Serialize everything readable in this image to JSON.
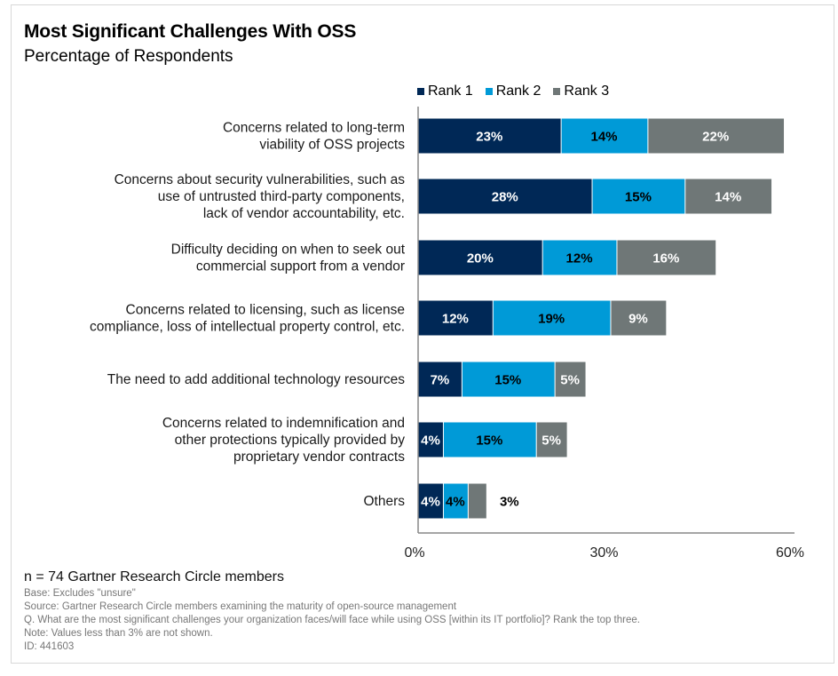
{
  "colors": {
    "rank1": "#002856",
    "rank2": "#009ad7",
    "rank3": "#6f7777",
    "axis": "#888888"
  },
  "chart_data": {
    "type": "bar",
    "orientation": "horizontal",
    "stacked": true,
    "title": "Most Significant Challenges With OSS",
    "subtitle": "Percentage of Respondents",
    "xlabel": "",
    "ylabel": "",
    "xlim": [
      0,
      60
    ],
    "xticks": [
      "0%",
      "30%",
      "60%"
    ],
    "xtick_values": [
      0,
      30,
      60
    ],
    "grid": false,
    "legend_position": "top",
    "categories": [
      [
        "Concerns related to long-term",
        "viability of OSS projects"
      ],
      [
        "Concerns about security vulnerabilities, such as",
        "use of untrusted third-party components,",
        "lack of vendor accountability, etc."
      ],
      [
        "Difficulty deciding on when to seek out",
        "commercial support from a vendor"
      ],
      [
        "Concerns related to licensing, such as license",
        "compliance, loss of intellectual property control, etc."
      ],
      [
        "The need to add additional technology resources"
      ],
      [
        "Concerns related to indemnification and",
        "other protections typically provided by",
        "proprietary vendor contracts"
      ],
      [
        "Others"
      ]
    ],
    "series": [
      {
        "name": "Rank 1",
        "color": "#002856",
        "label_color": "#ffffff",
        "values": [
          23,
          28,
          20,
          12,
          7,
          4,
          4
        ],
        "labels": [
          "23%",
          "28%",
          "20%",
          "12%",
          "7%",
          "4%",
          "4%"
        ]
      },
      {
        "name": "Rank 2",
        "color": "#009ad7",
        "label_color": "#000000",
        "values": [
          14,
          15,
          12,
          19,
          15,
          15,
          4
        ],
        "labels": [
          "14%",
          "15%",
          "12%",
          "19%",
          "15%",
          "15%",
          "4%"
        ]
      },
      {
        "name": "Rank 3",
        "color": "#6f7777",
        "label_color": "#ffffff",
        "values": [
          22,
          14,
          16,
          9,
          5,
          5,
          3
        ],
        "labels": [
          "22%",
          "14%",
          "16%",
          "9%",
          "5%",
          "5%",
          "3%"
        ]
      }
    ],
    "outside_labels": [
      [
        6,
        2
      ]
    ]
  },
  "footer": {
    "n": "n = 74 Gartner Research Circle members",
    "lines": [
      "Base: Excludes \"unsure\"",
      "Source: Gartner Research Circle members examining the maturity of open-source management",
      "Q. What are the most significant challenges your organization faces/will face while using OSS [within its IT portfolio]? Rank the top three.",
      "Note: Values less than 3% are not shown.",
      "ID: 441603"
    ]
  }
}
